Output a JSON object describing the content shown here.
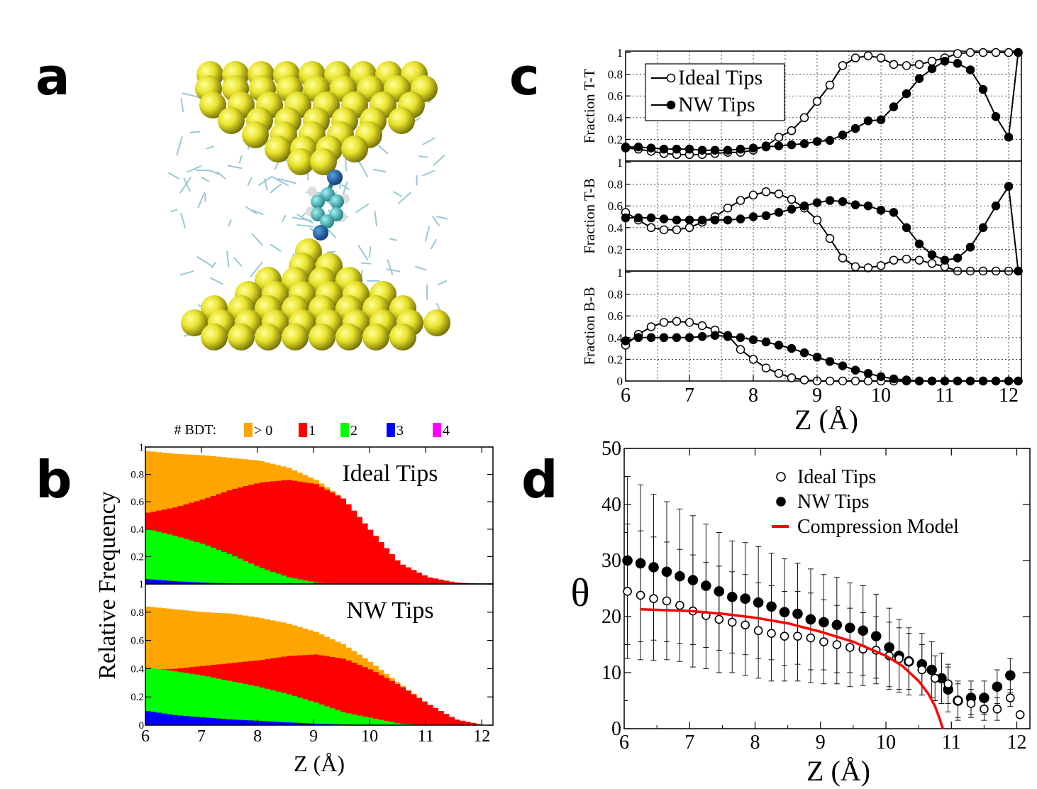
{
  "panels": {
    "a": "a",
    "b": "b",
    "c": "c",
    "d": "d"
  },
  "chart_data": [
    {
      "panel": "b",
      "type": "area",
      "legend_title": "# BDT:",
      "legend": [
        {
          "label": "> 0",
          "color": "#ffa500"
        },
        {
          "label": "1",
          "color": "#ff0000"
        },
        {
          "label": "2",
          "color": "#00ff00"
        },
        {
          "label": "3",
          "color": "#0000ff"
        },
        {
          "label": "4",
          "color": "#ff00ff"
        }
      ],
      "xlabel": "Z (Å)",
      "ylabel": "Relative Frequency",
      "xlim": [
        6,
        12.2
      ],
      "ylim": [
        0,
        1
      ],
      "x_ticks": [
        "6",
        "7",
        "8",
        "9",
        "10",
        "11",
        "12"
      ],
      "y_ticks": [
        "0",
        "0.2",
        "0.4",
        "0.6",
        "0.8",
        "1"
      ],
      "x": [
        6,
        6.5,
        7,
        7.5,
        8,
        8.5,
        9,
        9.5,
        10,
        10.5,
        11,
        11.5,
        12
      ],
      "subplots": [
        {
          "title": "Ideal Tips",
          "series": [
            {
              "name": "> 0",
              "values": [
                0.97,
                0.95,
                0.94,
                0.92,
                0.9,
                0.85,
                0.76,
                0.62,
                0.38,
                0.15,
                0.05,
                0.01,
                0
              ]
            },
            {
              "name": "1",
              "values": [
                0.52,
                0.56,
                0.62,
                0.69,
                0.74,
                0.76,
                0.73,
                0.62,
                0.38,
                0.15,
                0.05,
                0.01,
                0
              ]
            },
            {
              "name": "2",
              "values": [
                0.4,
                0.35,
                0.29,
                0.21,
                0.12,
                0.05,
                0.01,
                0,
                0,
                0,
                0,
                0,
                0
              ]
            },
            {
              "name": "3",
              "values": [
                0.035,
                0.02,
                0.01,
                0.003,
                0,
                0,
                0,
                0,
                0,
                0,
                0,
                0,
                0
              ]
            }
          ]
        },
        {
          "title": "NW Tips",
          "series": [
            {
              "name": "> 0",
              "values": [
                0.84,
                0.82,
                0.8,
                0.79,
                0.76,
                0.72,
                0.66,
                0.57,
                0.44,
                0.29,
                0.15,
                0.04,
                0
              ]
            },
            {
              "name": "1",
              "values": [
                0.39,
                0.4,
                0.42,
                0.44,
                0.46,
                0.49,
                0.5,
                0.47,
                0.39,
                0.28,
                0.15,
                0.04,
                0
              ]
            },
            {
              "name": "2",
              "values": [
                0.41,
                0.38,
                0.35,
                0.31,
                0.27,
                0.22,
                0.16,
                0.09,
                0.05,
                0.01,
                0,
                0,
                0
              ]
            },
            {
              "name": "3",
              "values": [
                0.1,
                0.07,
                0.055,
                0.04,
                0.03,
                0.02,
                0.01,
                0.005,
                0,
                0,
                0,
                0,
                0
              ]
            }
          ]
        }
      ]
    },
    {
      "panel": "c",
      "type": "line",
      "xlabel": "Z (Å)",
      "xlim": [
        6,
        12.2
      ],
      "x_ticks": [
        "6",
        "7",
        "8",
        "9",
        "10",
        "11",
        "12"
      ],
      "y_ticks": [
        "0",
        "0.2",
        "0.4",
        "0.6",
        "0.8",
        "1"
      ],
      "x": [
        6.0,
        6.2,
        6.4,
        6.6,
        6.8,
        7.0,
        7.2,
        7.4,
        7.6,
        7.8,
        8.0,
        8.2,
        8.4,
        8.6,
        8.8,
        9.0,
        9.2,
        9.4,
        9.6,
        9.8,
        10.0,
        10.2,
        10.4,
        10.6,
        10.8,
        11.0,
        11.2,
        11.4,
        11.6,
        11.8,
        12.0,
        12.15
      ],
      "legend": [
        {
          "name": "Ideal Tips",
          "marker": "open"
        },
        {
          "name": "NW Tips",
          "marker": "filled"
        }
      ],
      "subplots": [
        {
          "ylabel": "Fraction T-T",
          "series": [
            {
              "name": "Ideal Tips",
              "values": [
                0.12,
                0.11,
                0.09,
                0.07,
                0.06,
                0.06,
                0.06,
                0.07,
                0.08,
                0.08,
                0.1,
                0.14,
                0.22,
                0.28,
                0.4,
                0.55,
                0.7,
                0.88,
                0.95,
                0.97,
                0.95,
                0.89,
                0.88,
                0.89,
                0.92,
                0.95,
                0.99,
                1.0,
                1.0,
                1.0,
                1.0,
                1.0
              ]
            },
            {
              "name": "NW Tips",
              "values": [
                0.13,
                0.13,
                0.12,
                0.11,
                0.11,
                0.11,
                0.1,
                0.1,
                0.1,
                0.11,
                0.12,
                0.13,
                0.14,
                0.15,
                0.16,
                0.18,
                0.19,
                0.24,
                0.3,
                0.37,
                0.38,
                0.5,
                0.62,
                0.76,
                0.85,
                0.92,
                0.9,
                0.84,
                0.66,
                0.41,
                0.22,
                1.0
              ]
            }
          ]
        },
        {
          "ylabel": "Fraction T-B",
          "series": [
            {
              "name": "Ideal Tips",
              "values": [
                0.54,
                0.47,
                0.4,
                0.38,
                0.38,
                0.4,
                0.45,
                0.5,
                0.58,
                0.65,
                0.7,
                0.73,
                0.71,
                0.66,
                0.58,
                0.47,
                0.3,
                0.12,
                0.04,
                0.03,
                0.05,
                0.1,
                0.11,
                0.1,
                0.07,
                0.04,
                0.0,
                0.0,
                0.0,
                0.0,
                0.0,
                0.0
              ]
            },
            {
              "name": "NW Tips",
              "values": [
                0.49,
                0.49,
                0.49,
                0.48,
                0.47,
                0.47,
                0.47,
                0.47,
                0.47,
                0.48,
                0.5,
                0.51,
                0.54,
                0.57,
                0.6,
                0.63,
                0.65,
                0.64,
                0.61,
                0.6,
                0.56,
                0.54,
                0.4,
                0.25,
                0.15,
                0.1,
                0.12,
                0.22,
                0.4,
                0.6,
                0.78,
                0.0
              ]
            }
          ]
        },
        {
          "ylabel": "Fraction B-B",
          "series": [
            {
              "name": "Ideal Tips",
              "values": [
                0.33,
                0.43,
                0.5,
                0.54,
                0.55,
                0.54,
                0.51,
                0.47,
                0.42,
                0.29,
                0.2,
                0.12,
                0.07,
                0.03,
                0.01,
                0.0,
                0.0,
                0.0,
                0.0,
                0.0,
                0.0,
                0.0,
                0.0,
                0.0,
                0.0,
                0.0,
                0.0,
                0.0,
                0.0,
                0.0,
                0.0,
                0.0
              ]
            },
            {
              "name": "NW Tips",
              "values": [
                0.37,
                0.4,
                0.4,
                0.4,
                0.4,
                0.4,
                0.41,
                0.42,
                0.41,
                0.4,
                0.38,
                0.36,
                0.33,
                0.3,
                0.26,
                0.22,
                0.18,
                0.14,
                0.1,
                0.07,
                0.04,
                0.02,
                0.01,
                0.0,
                0.0,
                0.0,
                0.0,
                0.0,
                0.0,
                0.0,
                0.0,
                0.0
              ]
            }
          ]
        }
      ]
    },
    {
      "panel": "d",
      "type": "scatter",
      "xlabel": "Z (Å)",
      "ylabel": "θ",
      "xlim": [
        6,
        12.2
      ],
      "ylim": [
        0,
        50
      ],
      "x_ticks": [
        "6",
        "7",
        "8",
        "9",
        "10",
        "11",
        "12"
      ],
      "y_ticks": [
        "0",
        "10",
        "20",
        "30",
        "40",
        "50"
      ],
      "legend": [
        {
          "name": "Ideal Tips",
          "marker": "open"
        },
        {
          "name": "NW Tips",
          "marker": "filled"
        },
        {
          "name": "Compression Model",
          "marker": "line",
          "color": "#ff0000"
        }
      ],
      "series": [
        {
          "name": "NW Tips",
          "x": [
            6.05,
            6.25,
            6.45,
            6.65,
            6.85,
            7.05,
            7.25,
            7.45,
            7.65,
            7.85,
            8.05,
            8.25,
            8.45,
            8.65,
            8.85,
            9.05,
            9.25,
            9.45,
            9.65,
            9.85,
            10.05,
            10.2,
            10.35,
            10.55,
            10.7,
            10.85,
            10.95,
            11.1,
            11.3,
            11.5,
            11.7,
            11.9
          ],
          "y": [
            30,
            29.5,
            28.8,
            28,
            27.2,
            26.5,
            25.5,
            24.5,
            23.5,
            23.2,
            22.5,
            21.8,
            20.8,
            20.5,
            19.5,
            19,
            18.5,
            18.0,
            17.5,
            16.5,
            14.5,
            13,
            12,
            11.5,
            10.5,
            9,
            7,
            5,
            5.5,
            5.5,
            7.5,
            9.5
          ],
          "err": [
            15,
            14,
            13,
            12.5,
            12,
            11.5,
            11,
            10.5,
            10,
            10,
            10,
            9.5,
            9.5,
            9,
            9,
            8.5,
            8.5,
            8,
            8,
            7.5,
            7,
            6.5,
            6,
            5.5,
            5,
            4.5,
            4,
            3.5,
            3,
            3,
            3,
            3
          ]
        },
        {
          "name": "Ideal Tips",
          "x": [
            6.05,
            6.25,
            6.45,
            6.65,
            6.85,
            7.05,
            7.25,
            7.45,
            7.65,
            7.85,
            8.05,
            8.25,
            8.45,
            8.65,
            8.85,
            9.05,
            9.25,
            9.45,
            9.65,
            9.85,
            10.05,
            10.2,
            10.35,
            10.55,
            10.75,
            10.95,
            11.1,
            11.3,
            11.5,
            11.7,
            11.9,
            12.05
          ],
          "y": [
            24.5,
            23.8,
            23.2,
            22.8,
            22,
            21,
            20.2,
            19.5,
            19,
            18.5,
            17.5,
            17,
            16.5,
            16.5,
            16.2,
            15.5,
            15,
            14.5,
            14.2,
            14,
            13,
            12.5,
            12,
            10.5,
            9,
            8,
            5,
            4.5,
            3.5,
            3.5,
            5.5,
            2.5
          ],
          "err": [
            12,
            11.5,
            11,
            10.5,
            10,
            10,
            9.5,
            9.5,
            9,
            9,
            8.5,
            8.5,
            8,
            8,
            8,
            7.5,
            7,
            7,
            6.5,
            6,
            6,
            5.5,
            5,
            4.5,
            4,
            3.5,
            3,
            2.5,
            2,
            2,
            1.5,
            0.6
          ]
        },
        {
          "name": "Compression Model",
          "x": [
            6.25,
            6.5,
            7,
            7.5,
            8,
            8.5,
            9,
            9.5,
            10,
            10.25,
            10.5,
            10.65,
            10.75,
            10.82,
            10.87
          ],
          "y": [
            21.3,
            21.2,
            21,
            20.5,
            19.8,
            18.8,
            17.3,
            15.5,
            13,
            11.2,
            8.5,
            6.2,
            4,
            1.8,
            0
          ]
        }
      ]
    }
  ]
}
